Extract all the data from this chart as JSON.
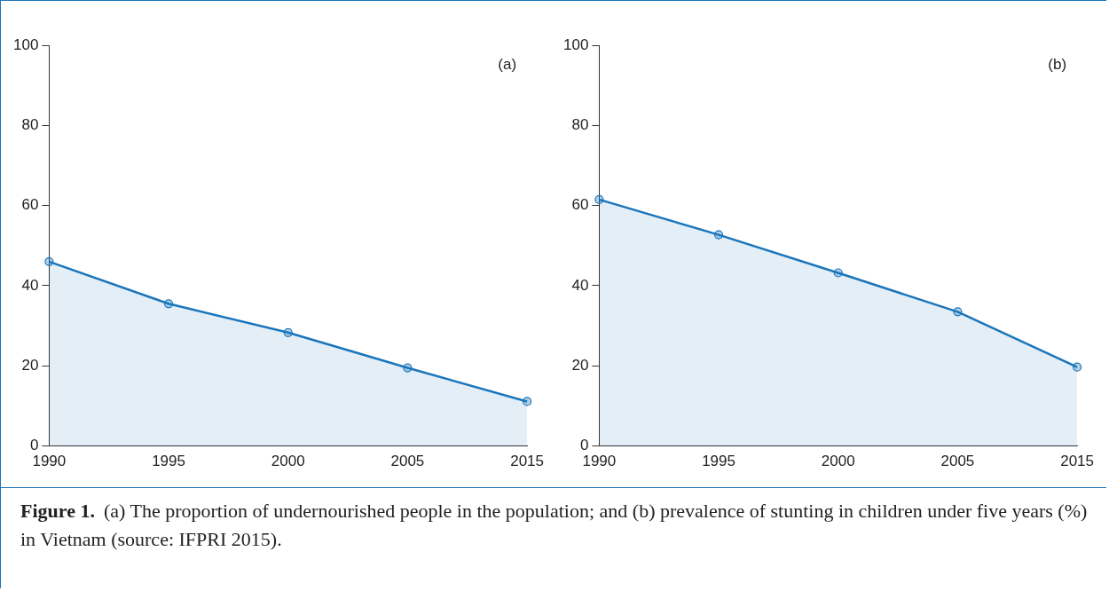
{
  "chart_data": [
    {
      "type": "area",
      "title": "(a)",
      "categories": [
        "1990",
        "1995",
        "2000",
        "2005",
        "2015"
      ],
      "series": [
        {
          "color": "#1a75bb",
          "values": [
            46,
            35.5,
            28.3,
            19.5,
            11.1
          ]
        }
      ],
      "ylim": [
        0,
        100
      ],
      "yticks": [
        0,
        20,
        40,
        60,
        80,
        100
      ],
      "grid": false,
      "marker": "circle",
      "annotations": [
        "Figure 1.",
        "(a) The proportion of undernourished people in the population; and (b) prevalence of stunting in children under five years (%) in Vietnam (source: IFPRI 2015)."
      ]
    },
    {
      "type": "area",
      "title": "(b)",
      "categories": [
        "1990",
        "1995",
        "2000",
        "2005",
        "2015"
      ],
      "series": [
        {
          "color": "#1a75bb",
          "values": [
            61.5,
            52.7,
            43.2,
            33.5,
            19.7
          ]
        }
      ],
      "ylim": [
        0,
        100
      ],
      "yticks": [
        0,
        20,
        40,
        60,
        80,
        100
      ],
      "grid": false,
      "marker": "circle"
    }
  ]
}
